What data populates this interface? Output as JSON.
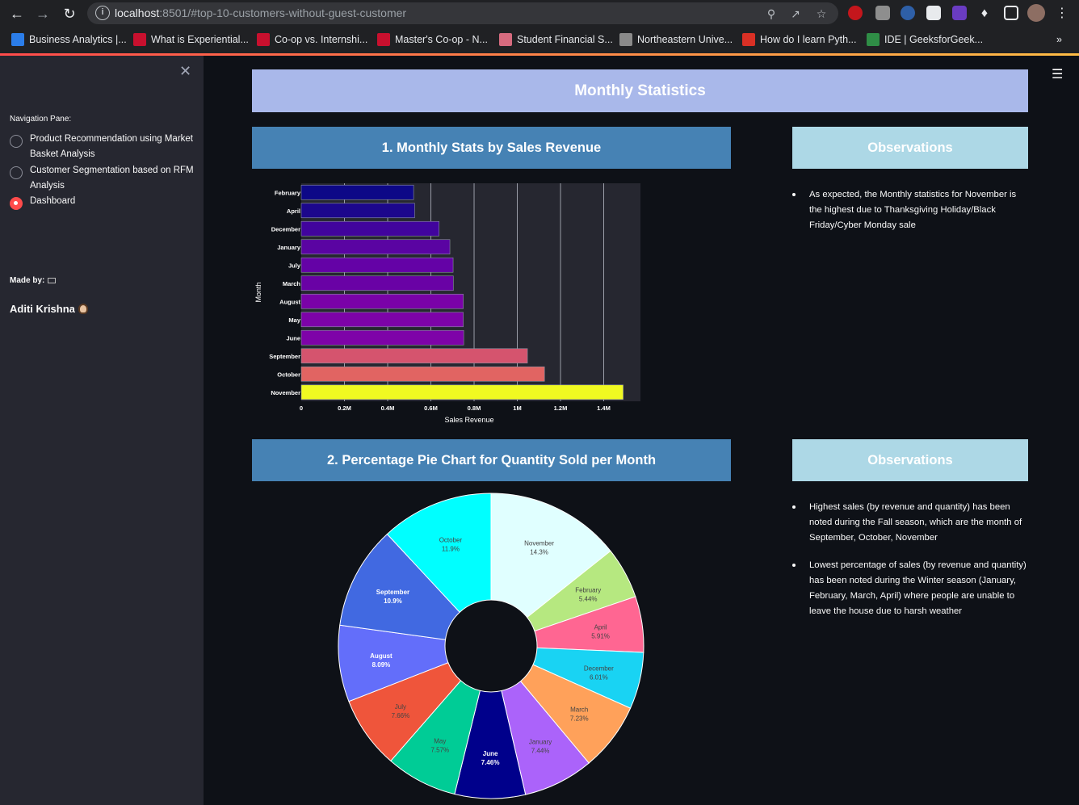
{
  "browser": {
    "url_host": "localhost",
    "url_rest": ":8501/#top-10-customers-without-guest-customer",
    "bookmarks": [
      {
        "label": "Business Analytics |...",
        "color": "#2b7de9"
      },
      {
        "label": "What is Experiential...",
        "color": "#c8102e"
      },
      {
        "label": "Co-op vs. Internshi...",
        "color": "#c8102e"
      },
      {
        "label": "Master's Co-op - N...",
        "color": "#c8102e"
      },
      {
        "label": "Student Financial S...",
        "color": "#d66b7f"
      },
      {
        "label": "Northeastern Unive...",
        "color": "#8a8a8a"
      },
      {
        "label": "How do I learn Pyth...",
        "color": "#d93025"
      },
      {
        "label": "IDE | GeeksforGeek...",
        "color": "#2f8d46"
      }
    ],
    "more": "»"
  },
  "sidebar": {
    "close": "✕",
    "nav_label": "Navigation Pane:",
    "options": [
      {
        "label": "Product Recommendation using Market Basket Analysis",
        "selected": false
      },
      {
        "label": "Customer Segmentation based on RFM Analysis",
        "selected": false
      },
      {
        "label": "Dashboard",
        "selected": true
      }
    ],
    "made_by": "Made by:",
    "author": "Aditi Krishna"
  },
  "main": {
    "title": "Monthly Statistics",
    "section1_title": "1. Monthly Stats by Sales Revenue",
    "section2_title": "2. Percentage Pie Chart for Quantity Sold per Month",
    "obs_title": "Observations",
    "obs1": [
      "As expected, the Monthly statistics for November is the highest due to Thanksgiving Holiday/Black Friday/Cyber Monday sale"
    ],
    "obs2": [
      "Highest sales (by revenue and quantity) has been noted during the Fall season, which are the month of September, October, November",
      "Lowest percentage of sales (by revenue and quantity) has been noted during the Winter season (January, February, March, April) where people are unable to leave the house due to harsh weather"
    ]
  },
  "chart_data": [
    {
      "type": "bar",
      "orientation": "horizontal",
      "categories": [
        "February",
        "April",
        "December",
        "January",
        "July",
        "March",
        "August",
        "May",
        "June",
        "September",
        "October",
        "November"
      ],
      "values": [
        520000,
        525000,
        638000,
        688000,
        703000,
        704000,
        750000,
        750000,
        752000,
        1047000,
        1126000,
        1490000
      ],
      "colors": [
        "#0d0887",
        "#1c078c",
        "#41049d",
        "#5a04a2",
        "#6402a6",
        "#6902a5",
        "#7a02a8",
        "#7d03a8",
        "#7e03a8",
        "#d5546e",
        "#e16462",
        "#f0f921"
      ],
      "xlabel": "Sales Revenue",
      "ylabel": "Month",
      "xticks": [
        "0",
        "0.2M",
        "0.4M",
        "0.6M",
        "0.8M",
        "1M",
        "1.2M",
        "1.4M"
      ],
      "xlim": [
        0,
        1570000
      ],
      "grid": true
    },
    {
      "type": "pie",
      "hole": true,
      "slices": [
        {
          "label": "November",
          "value": 14.3,
          "text": "14.3%",
          "color": "#e0ffff",
          "text_color": "#444444"
        },
        {
          "label": "February",
          "value": 5.44,
          "text": "5.44%",
          "color": "#b6e880",
          "text_color": "#444444"
        },
        {
          "label": "April",
          "value": 5.91,
          "text": "5.91%",
          "color": "#ff6692",
          "text_color": "#444444"
        },
        {
          "label": "December",
          "value": 6.01,
          "text": "6.01%",
          "color": "#19d3f3",
          "text_color": "#444444"
        },
        {
          "label": "March",
          "value": 7.23,
          "text": "7.23%",
          "color": "#ffa15a",
          "text_color": "#444444"
        },
        {
          "label": "January",
          "value": 7.44,
          "text": "7.44%",
          "color": "#ab63fa",
          "text_color": "#444444"
        },
        {
          "label": "June",
          "value": 7.46,
          "text": "7.46%",
          "color": "#00008b",
          "text_color": "#ffffff"
        },
        {
          "label": "May",
          "value": 7.57,
          "text": "7.57%",
          "color": "#00cc96",
          "text_color": "#444444"
        },
        {
          "label": "July",
          "value": 7.66,
          "text": "7.66%",
          "color": "#ef553b",
          "text_color": "#444444"
        },
        {
          "label": "August",
          "value": 8.09,
          "text": "8.09%",
          "color": "#636efa",
          "text_color": "#ffffff"
        },
        {
          "label": "September",
          "value": 10.9,
          "text": "10.9%",
          "color": "#4169e1",
          "text_color": "#ffffff"
        },
        {
          "label": "October",
          "value": 11.9,
          "text": "11.9%",
          "color": "#00ffff",
          "text_color": "#444444"
        }
      ]
    }
  ]
}
